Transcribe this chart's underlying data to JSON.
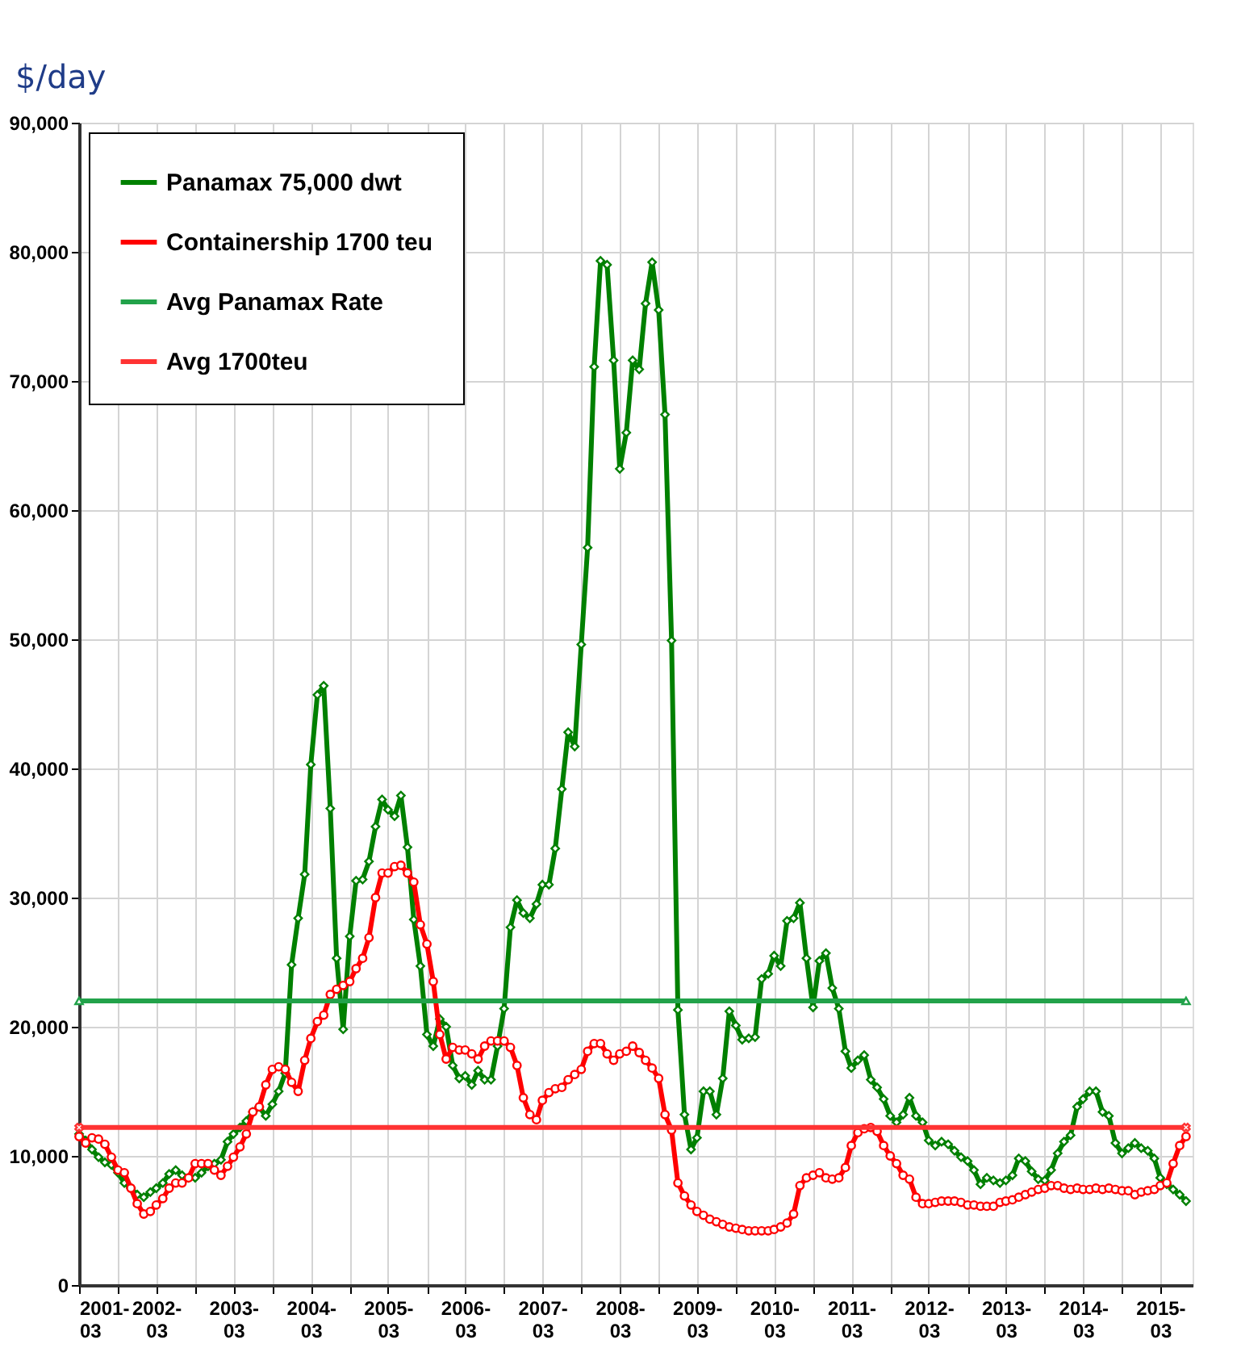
{
  "chart_data": {
    "type": "line",
    "ylabel": "$/day",
    "x": [
      "2001-03",
      "2001-04",
      "2001-05",
      "2001-06",
      "2001-07",
      "2001-08",
      "2001-09",
      "2001-10",
      "2001-11",
      "2001-12",
      "2002-01",
      "2002-02",
      "2002-03",
      "2002-04",
      "2002-05",
      "2002-06",
      "2002-07",
      "2002-08",
      "2002-09",
      "2002-10",
      "2002-11",
      "2002-12",
      "2003-01",
      "2003-02",
      "2003-03",
      "2003-04",
      "2003-05",
      "2003-06",
      "2003-07",
      "2003-08",
      "2003-09",
      "2003-10",
      "2003-11",
      "2003-12",
      "2004-01",
      "2004-02",
      "2004-03",
      "2004-04",
      "2004-05",
      "2004-06",
      "2004-07",
      "2004-08",
      "2004-09",
      "2004-10",
      "2004-11",
      "2004-12",
      "2005-01",
      "2005-02",
      "2005-03",
      "2005-04",
      "2005-05",
      "2005-06",
      "2005-07",
      "2005-08",
      "2005-09",
      "2005-10",
      "2005-11",
      "2005-12",
      "2006-01",
      "2006-02",
      "2006-03",
      "2006-04",
      "2006-05",
      "2006-06",
      "2006-07",
      "2006-08",
      "2006-09",
      "2006-10",
      "2006-11",
      "2006-12",
      "2007-01",
      "2007-02",
      "2007-03",
      "2007-04",
      "2007-05",
      "2007-06",
      "2007-07",
      "2007-08",
      "2007-09",
      "2007-10",
      "2007-11",
      "2007-12",
      "2008-01",
      "2008-02",
      "2008-03",
      "2008-04",
      "2008-05",
      "2008-06",
      "2008-07",
      "2008-08",
      "2008-09",
      "2008-10",
      "2008-11",
      "2008-12",
      "2009-01",
      "2009-02",
      "2009-03",
      "2009-04",
      "2009-05",
      "2009-06",
      "2009-07",
      "2009-08",
      "2009-09",
      "2009-10",
      "2009-11",
      "2009-12",
      "2010-01",
      "2010-02",
      "2010-03",
      "2010-04",
      "2010-05",
      "2010-06",
      "2010-07",
      "2010-08",
      "2010-09",
      "2010-10",
      "2010-11",
      "2010-12",
      "2011-01",
      "2011-02",
      "2011-03",
      "2011-04",
      "2011-05",
      "2011-06",
      "2011-07",
      "2011-08",
      "2011-09",
      "2011-10",
      "2011-11",
      "2011-12",
      "2012-01",
      "2012-02",
      "2012-03",
      "2012-04",
      "2012-05",
      "2012-06",
      "2012-07",
      "2012-08",
      "2012-09",
      "2012-10",
      "2012-11",
      "2012-12",
      "2013-01",
      "2013-02",
      "2013-03",
      "2013-04",
      "2013-05",
      "2013-06",
      "2013-07",
      "2013-08",
      "2013-09",
      "2013-10",
      "2013-11",
      "2013-12",
      "2014-01",
      "2014-02",
      "2014-03",
      "2014-04",
      "2014-05",
      "2014-06",
      "2014-07",
      "2014-08",
      "2014-09",
      "2014-10",
      "2014-11",
      "2014-12",
      "2015-01",
      "2015-02",
      "2015-03",
      "2015-04",
      "2015-05",
      "2015-06",
      "2015-07"
    ],
    "series": [
      {
        "name": "Panamax 75,000 dwt",
        "color": "#008000",
        "marker": "diamond",
        "values": [
          11700,
          11200,
          10500,
          9900,
          9500,
          9300,
          8700,
          7900,
          7500,
          7000,
          6800,
          7200,
          7500,
          7900,
          8600,
          8900,
          8500,
          8300,
          8300,
          8700,
          9200,
          9400,
          9700,
          11100,
          11700,
          12200,
          12700,
          13400,
          13800,
          13100,
          14000,
          15000,
          16400,
          24800,
          28400,
          31800,
          40300,
          45700,
          46400,
          36900,
          25300,
          19800,
          27000,
          31300,
          31400,
          32800,
          35500,
          37600,
          36800,
          36300,
          37900,
          33900,
          28300,
          24700,
          19400,
          18500,
          20600,
          20000,
          17000,
          16000,
          16200,
          15500,
          16600,
          15900,
          15900,
          18500,
          21400,
          27700,
          29800,
          28800,
          28400,
          29500,
          31000,
          31000,
          33800,
          38400,
          42800,
          41700,
          49600,
          57100,
          71100,
          79300,
          79000,
          71600,
          63200,
          66000,
          71600,
          70900,
          76000,
          79200,
          75500,
          67400,
          49900,
          21300,
          13200,
          10500,
          11400,
          15000,
          15000,
          13200,
          16000,
          21200,
          20100,
          19000,
          19100,
          19200,
          23700,
          24100,
          25500,
          24700,
          28200,
          28400,
          29600,
          25300,
          21500,
          25100,
          25700,
          23000,
          21400,
          18100,
          16800,
          17400,
          17800,
          15900,
          15300,
          14400,
          13100,
          12600,
          13200,
          14500,
          13100,
          12600,
          11200,
          10800,
          11100,
          10900,
          10400,
          9900,
          9600,
          8900,
          7800,
          8300,
          8100,
          7900,
          8100,
          8500,
          9800,
          9600,
          8800,
          8200,
          8100,
          8900,
          10200,
          11100,
          11600,
          13800,
          14400,
          15000,
          15000,
          13400,
          13100,
          11000,
          10200,
          10600,
          11000,
          10600,
          10400,
          9800,
          8300,
          7800,
          7400,
          7000,
          6500
        ]
      },
      {
        "name": "Containership 1700 teu",
        "color": "#ff0000",
        "marker": "circle",
        "values": [
          11500,
          11000,
          11400,
          11300,
          10900,
          9900,
          8900,
          8700,
          7500,
          6300,
          5500,
          5700,
          6200,
          6700,
          7500,
          7900,
          7900,
          8300,
          9400,
          9400,
          9400,
          8900,
          8500,
          9200,
          9900,
          10700,
          11700,
          13400,
          13800,
          15500,
          16700,
          16900,
          16700,
          15700,
          15000,
          17400,
          19100,
          20400,
          20900,
          22500,
          22900,
          23200,
          23500,
          24500,
          25300,
          26900,
          30000,
          31900,
          31900,
          32400,
          32500,
          31900,
          31200,
          27900,
          26400,
          23500,
          19400,
          17500,
          18400,
          18200,
          18200,
          17900,
          17500,
          18500,
          18900,
          18900,
          18900,
          18400,
          17000,
          14500,
          13200,
          12800,
          14300,
          14900,
          15200,
          15300,
          15900,
          16300,
          16700,
          18100,
          18700,
          18700,
          17900,
          17400,
          17900,
          18100,
          18500,
          18000,
          17400,
          16800,
          16000,
          13200,
          12000,
          7900,
          6900,
          6200,
          5700,
          5400,
          5100,
          4900,
          4700,
          4500,
          4400,
          4300,
          4200,
          4200,
          4200,
          4200,
          4300,
          4500,
          4800,
          5500,
          7700,
          8300,
          8500,
          8700,
          8300,
          8200,
          8300,
          9100,
          10800,
          11800,
          12100,
          12200,
          11900,
          10800,
          10000,
          9400,
          8500,
          8200,
          6800,
          6300,
          6300,
          6400,
          6500,
          6500,
          6500,
          6400,
          6200,
          6200,
          6100,
          6100,
          6100,
          6400,
          6500,
          6600,
          6800,
          7000,
          7200,
          7400,
          7500,
          7700,
          7700,
          7500,
          7400,
          7500,
          7400,
          7400,
          7500,
          7400,
          7500,
          7400,
          7300,
          7300,
          7000,
          7200,
          7300,
          7400,
          7700,
          7900,
          9400,
          10800,
          11500
        ]
      },
      {
        "name": "Avg Panamax Rate",
        "color": "#22a24a",
        "marker": "triangle",
        "x": [
          "2001-03",
          "2015-07"
        ],
        "values": [
          22000,
          22000
        ]
      },
      {
        "name": "Avg 1700teu",
        "color": "#ff3333",
        "marker": "cross",
        "x": [
          "2001-03",
          "2015-07"
        ],
        "values": [
          12200,
          12200
        ]
      }
    ],
    "xlim": [
      "2001-03",
      "2015-08"
    ],
    "xticks": [
      "2001-03",
      {
        "value": "2001-09",
        "label": null
      },
      "2002-03",
      {
        "value": "2002-09",
        "label": null
      },
      "2003-03",
      {
        "value": "2003-09",
        "label": null
      },
      "2004-03",
      {
        "value": "2004-09",
        "label": null
      },
      "2005-03",
      {
        "value": "2005-09",
        "label": null
      },
      "2006-03",
      {
        "value": "2006-09",
        "label": null
      },
      "2007-03",
      {
        "value": "2007-09",
        "label": null
      },
      "2008-03",
      {
        "value": "2008-09",
        "label": null
      },
      "2009-03",
      {
        "value": "2009-09",
        "label": null
      },
      "2010-03",
      {
        "value": "2010-09",
        "label": null
      },
      "2011-03",
      {
        "value": "2011-09",
        "label": null
      },
      "2012-03",
      {
        "value": "2012-09",
        "label": null
      },
      "2013-03",
      {
        "value": "2013-09",
        "label": null
      },
      "2014-03",
      {
        "value": "2014-09",
        "label": null
      },
      "2015-03"
    ],
    "ylim": [
      0,
      90000
    ],
    "yticks": [
      0,
      {
        "value": 10000,
        "label": "10,000"
      },
      {
        "value": 20000,
        "label": "20,000"
      },
      {
        "value": 30000,
        "label": "30,000"
      },
      {
        "value": 40000,
        "label": "40,000"
      },
      {
        "value": 50000,
        "label": "50,000"
      },
      {
        "value": 60000,
        "label": "60,000"
      },
      {
        "value": 70000,
        "label": "70,000"
      },
      {
        "value": 80000,
        "label": "80,000"
      },
      {
        "value": 90000,
        "label": "90,000"
      }
    ],
    "grid": true,
    "legend": "top left",
    "line_style": "solid"
  }
}
